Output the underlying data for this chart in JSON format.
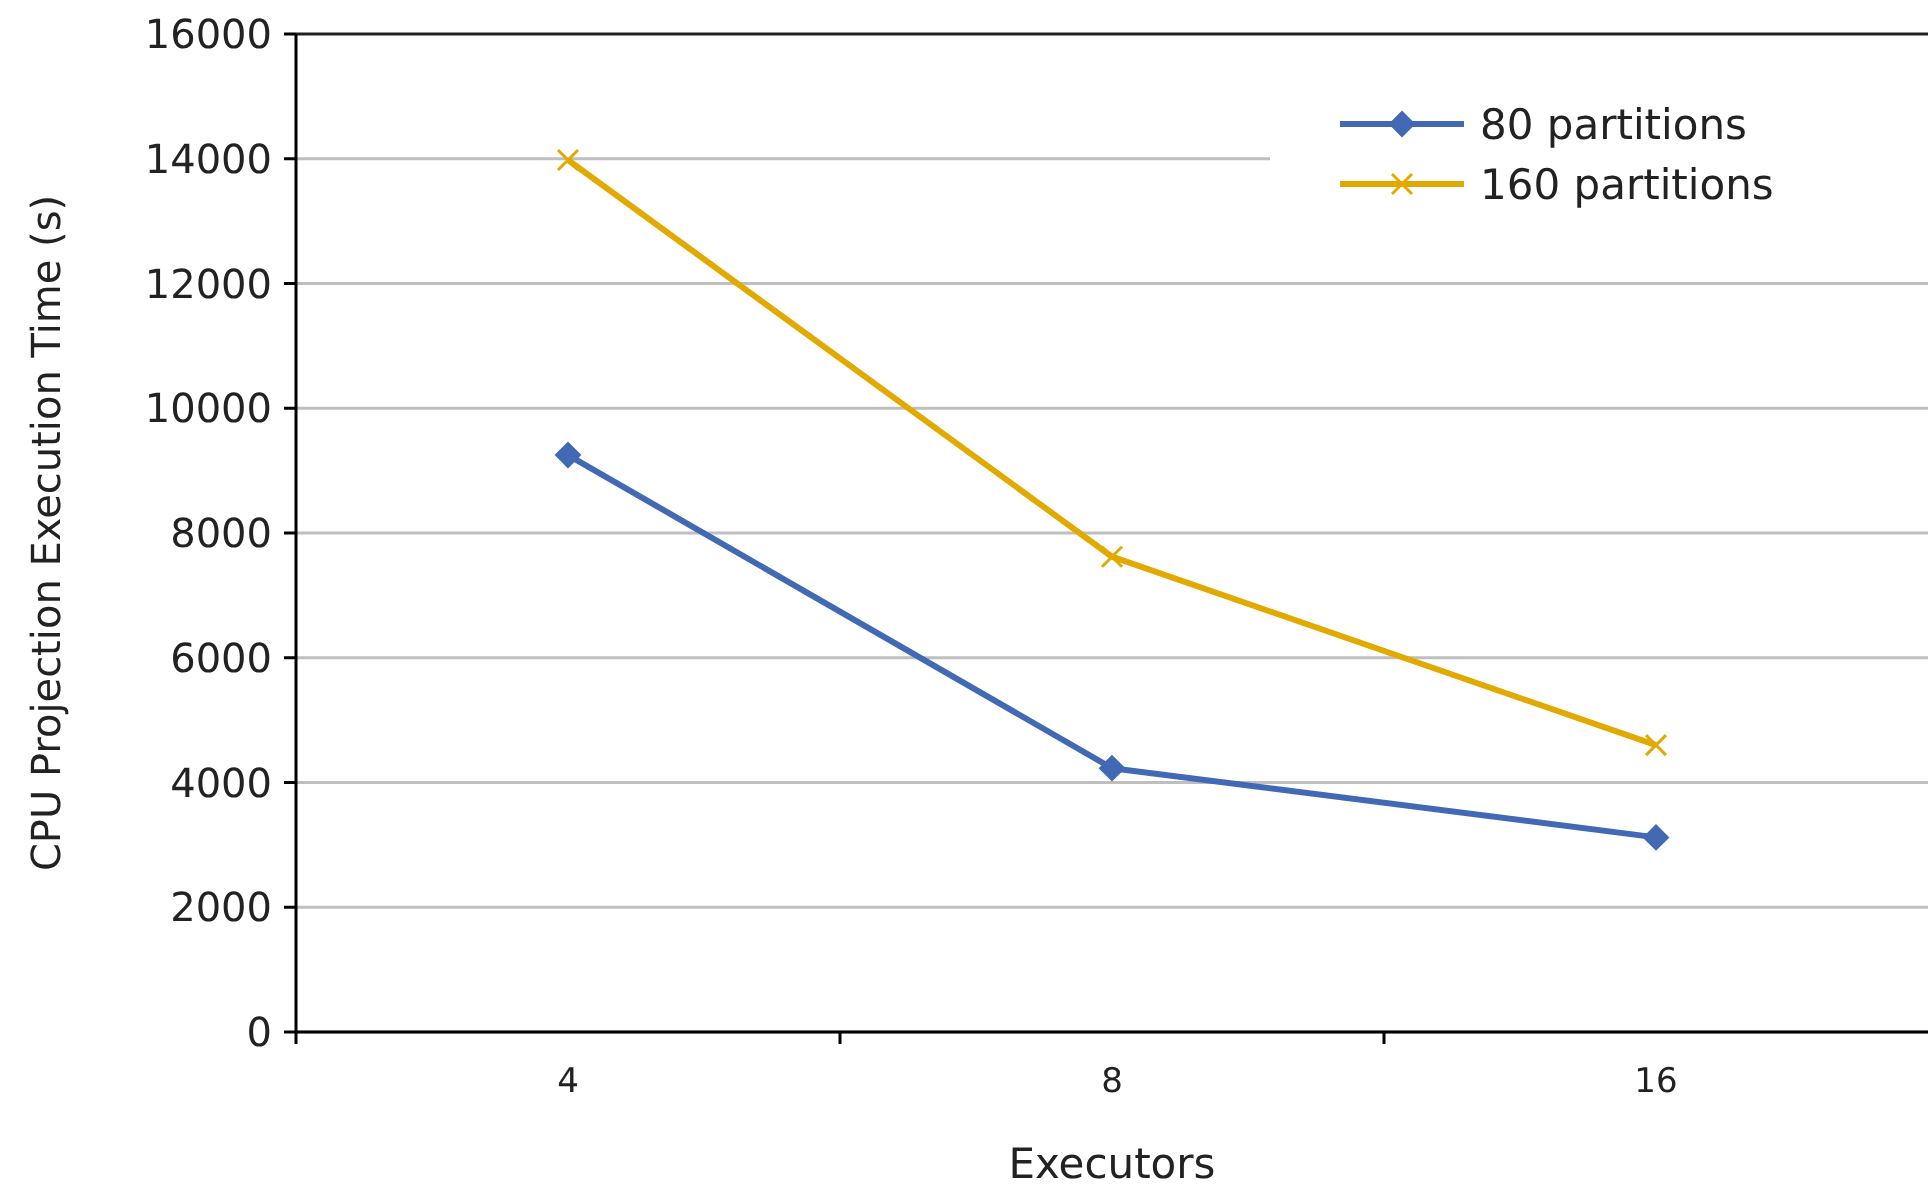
{
  "chart_data": {
    "type": "line",
    "xlabel": "Executors",
    "ylabel": "CPU Projection Execution Time (s)",
    "categories": [
      "4",
      "8",
      "16"
    ],
    "series": [
      {
        "name": "80 partitions",
        "color": "#4169b4",
        "values": [
          9250,
          4230,
          3120
        ],
        "marker": "diamond"
      },
      {
        "name": "160 partitions",
        "color": "#e2aa00",
        "values": [
          13980,
          7620,
          4600
        ],
        "marker": "cross"
      }
    ],
    "ylim": [
      0,
      16000
    ],
    "yticks": [
      0,
      2000,
      4000,
      6000,
      8000,
      10000,
      12000,
      14000,
      16000
    ],
    "grid": "y",
    "legend": "top right"
  }
}
